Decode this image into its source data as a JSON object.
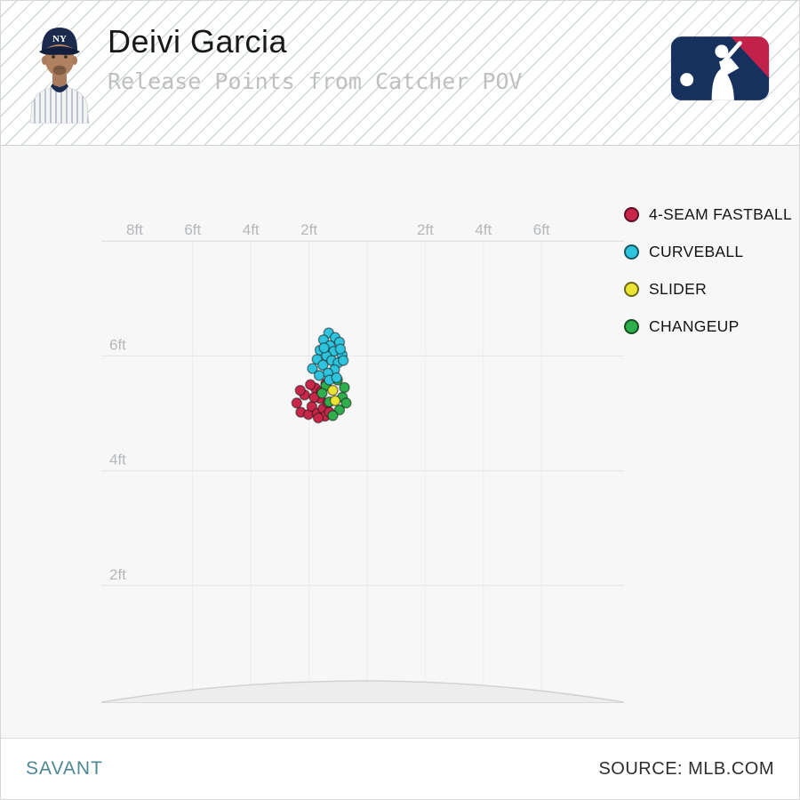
{
  "header": {
    "title": "Deivi Garcia",
    "subtitle": "Release Points from Catcher POV",
    "team_cap_initials": "NY"
  },
  "legend": [
    {
      "label": "4-SEAM FASTBALL",
      "color": "#c9274a"
    },
    {
      "label": "CURVEBALL",
      "color": "#2fc4de"
    },
    {
      "label": "SLIDER",
      "color": "#ece432"
    },
    {
      "label": "CHANGEUP",
      "color": "#2fae4c"
    }
  ],
  "footer": {
    "brand": "SAVANT",
    "source": "SOURCE: MLB.COM"
  },
  "chart_data": {
    "type": "scatter",
    "title": "Release Points from Catcher POV",
    "units": "ft",
    "x_range": [
      -9.2,
      9.0
    ],
    "y_range": [
      0,
      8.0
    ],
    "grid": true,
    "legend_position": "right",
    "x_ticks": [
      {
        "value": -8,
        "label": "8ft"
      },
      {
        "value": -6,
        "label": "6ft"
      },
      {
        "value": -4,
        "label": "4ft"
      },
      {
        "value": -2,
        "label": "2ft"
      },
      {
        "value": 2,
        "label": "2ft"
      },
      {
        "value": 4,
        "label": "4ft"
      },
      {
        "value": 6,
        "label": "6ft"
      }
    ],
    "y_ticks": [
      {
        "value": 6,
        "label": "6ft"
      },
      {
        "value": 4,
        "label": "4ft"
      },
      {
        "value": 2,
        "label": "2ft"
      }
    ],
    "grid_x_values": [
      -6,
      -4,
      -2,
      0,
      2,
      4,
      6
    ],
    "grid_y_values": [
      8,
      6,
      4,
      2
    ],
    "series": [
      {
        "name": "4-SEAM FASTBALL",
        "color": "#c9274a",
        "points": [
          [
            -2.42,
            5.18
          ],
          [
            -2.28,
            5.02
          ],
          [
            -2.15,
            5.32
          ],
          [
            -2.02,
            4.98
          ],
          [
            -1.9,
            5.12
          ],
          [
            -1.78,
            5.44
          ],
          [
            -1.72,
            5.0
          ],
          [
            -1.62,
            5.26
          ],
          [
            -1.95,
            5.5
          ],
          [
            -1.52,
            5.08
          ],
          [
            -1.45,
            4.95
          ],
          [
            -1.35,
            5.18
          ],
          [
            -1.3,
            5.02
          ],
          [
            -1.58,
            5.38
          ],
          [
            -1.82,
            5.28
          ],
          [
            -2.3,
            5.4
          ],
          [
            -1.42,
            5.52
          ],
          [
            -1.68,
            4.92
          ]
        ]
      },
      {
        "name": "CURVEBALL",
        "color": "#2fc4de",
        "points": [
          [
            -1.32,
            6.4
          ],
          [
            -1.1,
            6.32
          ],
          [
            -1.5,
            6.28
          ],
          [
            -0.95,
            6.24
          ],
          [
            -1.28,
            6.18
          ],
          [
            -1.62,
            6.1
          ],
          [
            -1.15,
            6.08
          ],
          [
            -0.86,
            6.02
          ],
          [
            -1.4,
            6.0
          ],
          [
            -1.72,
            5.94
          ],
          [
            -1.22,
            5.92
          ],
          [
            -1.0,
            5.88
          ],
          [
            -1.52,
            5.84
          ],
          [
            -1.88,
            5.78
          ],
          [
            -1.12,
            5.76
          ],
          [
            -1.35,
            5.7
          ],
          [
            -0.82,
            5.92
          ],
          [
            -1.65,
            5.66
          ],
          [
            -1.3,
            5.58
          ],
          [
            -1.05,
            5.62
          ],
          [
            -1.48,
            6.14
          ],
          [
            -0.92,
            6.12
          ]
        ]
      },
      {
        "name": "SLIDER",
        "color": "#ece432",
        "points": [
          [
            -1.18,
            5.4
          ],
          [
            -1.1,
            5.22
          ]
        ]
      },
      {
        "name": "CHANGEUP",
        "color": "#2fae4c",
        "points": [
          [
            -1.02,
            5.58
          ],
          [
            -0.78,
            5.45
          ],
          [
            -1.42,
            5.48
          ],
          [
            -0.85,
            5.28
          ],
          [
            -1.3,
            5.2
          ],
          [
            -0.95,
            5.06
          ],
          [
            -1.55,
            5.35
          ],
          [
            -0.72,
            5.18
          ],
          [
            -1.18,
            4.96
          ]
        ]
      }
    ]
  }
}
